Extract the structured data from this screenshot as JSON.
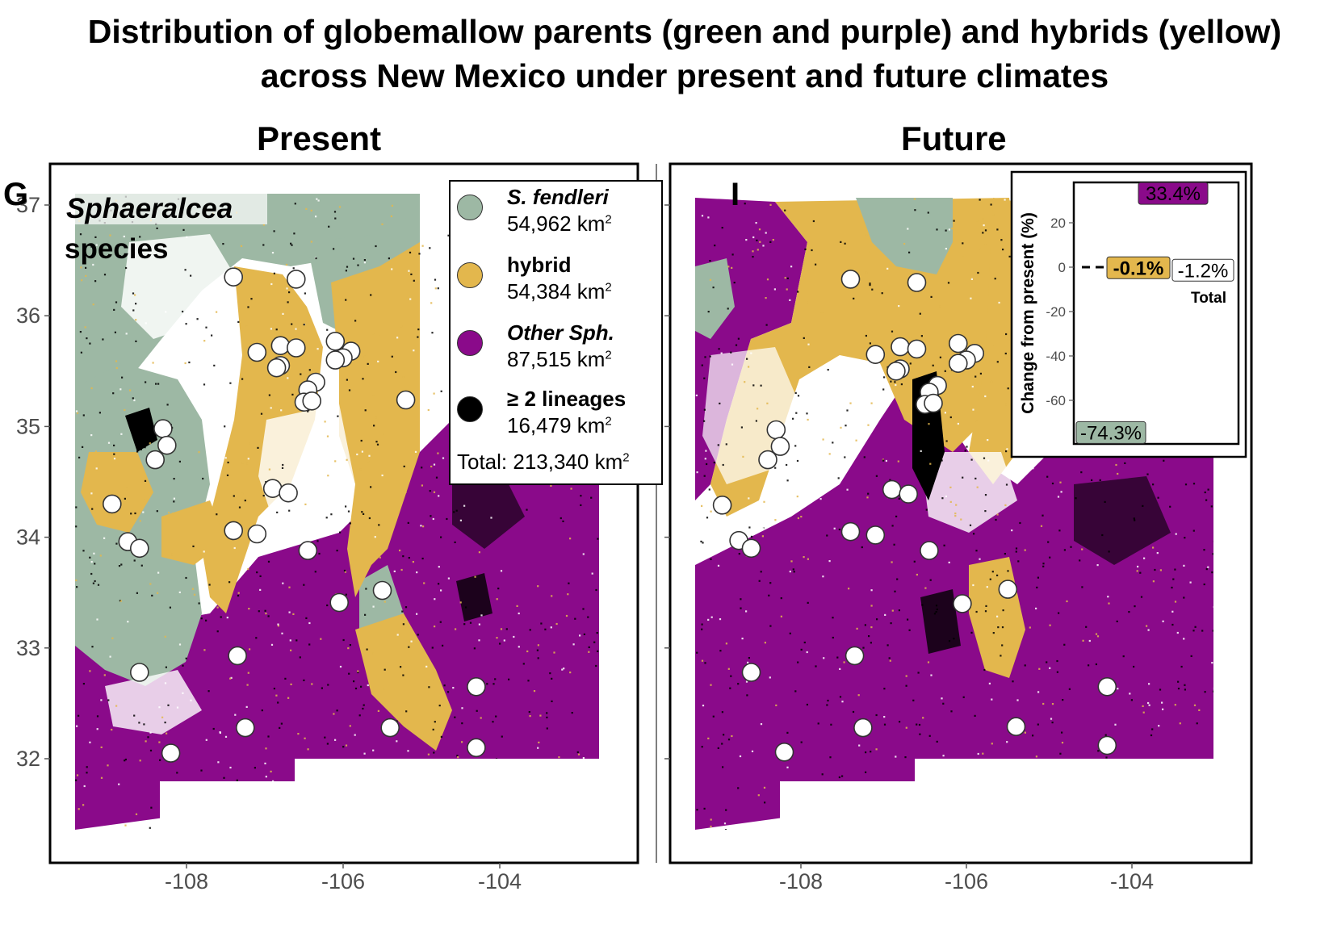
{
  "title": "Distribution of globemallow parents (green and purple) and hybrids (yellow) across New Mexico under present and future climates",
  "panels": {
    "present": {
      "title": "Present",
      "letter": "G",
      "tag_line1": "Sphaeralcea",
      "tag_line2": "species"
    },
    "future": {
      "title": "Future",
      "letter": "I"
    }
  },
  "colors": {
    "fendleri": "#9db8a4",
    "hybrid": "#e3b74d",
    "other": "#8a0a8a",
    "multi": "#000000",
    "absent": "#ffffff"
  },
  "legend": {
    "items": [
      {
        "name": "S. fendleri",
        "area": "54,962 km",
        "sup": "2",
        "color": "#9db8a4"
      },
      {
        "name_prefix": "",
        "name": "hybrid",
        "area": "54,384 km",
        "sup": "2",
        "color": "#e3b74d"
      },
      {
        "name": "Other Sph.",
        "area": "87,515 km",
        "sup": "2",
        "color": "#8a0a8a"
      },
      {
        "name": "≥ 2 lineages",
        "area": "16,479 km",
        "sup": "2",
        "color": "#000000"
      }
    ],
    "total": "Total: 213,340 km",
    "total_sup": "2"
  },
  "chart_data": [
    {
      "type": "scatter",
      "panel": "Present",
      "description_note": "Raster map of New Mexico with occurrence points (white circles).",
      "x_ticks": [
        "-108",
        "-106",
        "-104"
      ],
      "y_ticks": [
        "32",
        "33",
        "34",
        "35",
        "36",
        "37"
      ],
      "xlim": [
        -109.5,
        -102.8
      ],
      "ylim": [
        31.2,
        37.3
      ],
      "points": [
        [
          -107.4,
          36.35
        ],
        [
          -106.6,
          36.33
        ],
        [
          -107.1,
          35.67
        ],
        [
          -106.8,
          35.73
        ],
        [
          -106.6,
          35.71
        ],
        [
          -106.8,
          35.55
        ],
        [
          -106.85,
          35.53
        ],
        [
          -106.1,
          35.77
        ],
        [
          -105.9,
          35.68
        ],
        [
          -106.0,
          35.62
        ],
        [
          -106.1,
          35.6
        ],
        [
          -106.35,
          35.4
        ],
        [
          -106.45,
          35.33
        ],
        [
          -106.5,
          35.22
        ],
        [
          -106.4,
          35.23
        ],
        [
          -105.2,
          35.24
        ],
        [
          -108.3,
          34.98
        ],
        [
          -108.25,
          34.83
        ],
        [
          -108.4,
          34.7
        ],
        [
          -108.95,
          34.3
        ],
        [
          -106.9,
          34.44
        ],
        [
          -106.7,
          34.4
        ],
        [
          -107.4,
          34.06
        ],
        [
          -107.1,
          34.03
        ],
        [
          -106.45,
          33.88
        ],
        [
          -108.75,
          33.96
        ],
        [
          -108.6,
          33.9
        ],
        [
          -105.5,
          33.52
        ],
        [
          -106.05,
          33.41
        ],
        [
          -107.35,
          32.93
        ],
        [
          -108.6,
          32.78
        ],
        [
          -107.25,
          32.28
        ],
        [
          -105.4,
          32.28
        ],
        [
          -104.3,
          32.65
        ],
        [
          -104.3,
          32.1
        ],
        [
          -108.2,
          32.05
        ]
      ]
    },
    {
      "type": "scatter",
      "panel": "Future",
      "x_ticks": [
        "-108",
        "-106",
        "-104"
      ],
      "xlim": [
        -109.5,
        -102.8
      ],
      "ylim": [
        31.2,
        37.3
      ],
      "points": [
        [
          -107.4,
          36.33
        ],
        [
          -106.6,
          36.3
        ],
        [
          -107.1,
          35.65
        ],
        [
          -106.8,
          35.72
        ],
        [
          -106.6,
          35.7
        ],
        [
          -106.8,
          35.52
        ],
        [
          -106.85,
          35.5
        ],
        [
          -106.1,
          35.75
        ],
        [
          -105.9,
          35.66
        ],
        [
          -106.0,
          35.6
        ],
        [
          -106.1,
          35.57
        ],
        [
          -106.35,
          35.37
        ],
        [
          -106.45,
          35.31
        ],
        [
          -106.5,
          35.2
        ],
        [
          -106.4,
          35.21
        ],
        [
          -108.3,
          34.97
        ],
        [
          -108.25,
          34.82
        ],
        [
          -108.4,
          34.7
        ],
        [
          -108.95,
          34.29
        ],
        [
          -106.9,
          34.43
        ],
        [
          -106.7,
          34.39
        ],
        [
          -107.4,
          34.05
        ],
        [
          -107.1,
          34.02
        ],
        [
          -106.45,
          33.88
        ],
        [
          -108.75,
          33.97
        ],
        [
          -108.6,
          33.9
        ],
        [
          -105.5,
          33.53
        ],
        [
          -106.05,
          33.4
        ],
        [
          -107.35,
          32.93
        ],
        [
          -108.6,
          32.78
        ],
        [
          -107.25,
          32.28
        ],
        [
          -105.4,
          32.29
        ],
        [
          -104.3,
          32.65
        ],
        [
          -104.3,
          32.12
        ],
        [
          -108.2,
          32.06
        ]
      ]
    },
    {
      "type": "bar",
      "panel": "Future inset",
      "ylabel": "Change from present (%)",
      "y_ticks": [
        "20",
        "0",
        "-20",
        "-40",
        "-60"
      ],
      "ylim": [
        -78,
        38
      ],
      "categories": [
        "S. fendleri",
        "hybrid",
        "Other Sph.",
        "Total"
      ],
      "values": [
        -74.3,
        -0.1,
        33.4,
        -1.2
      ],
      "labels": [
        "-74.3%",
        "-0.1%",
        "33.4%",
        "-1.2%"
      ],
      "total_label": "Total"
    }
  ]
}
